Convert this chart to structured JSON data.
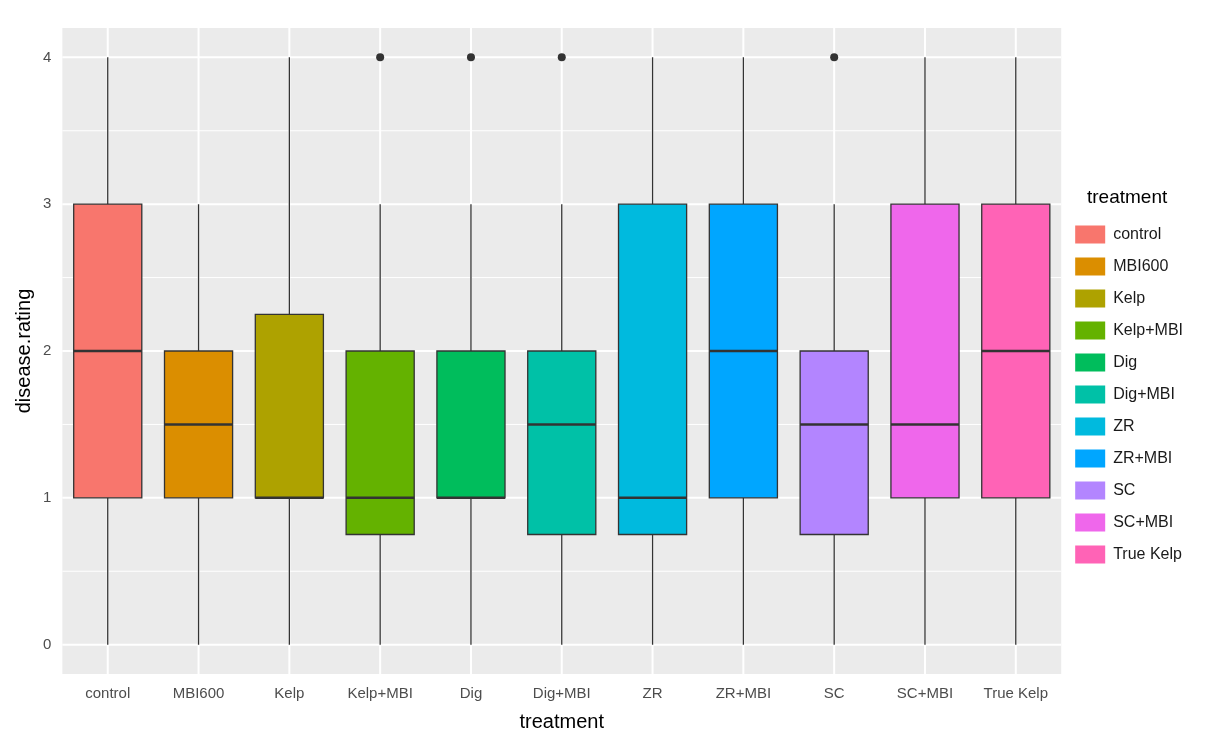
{
  "chart_data": {
    "type": "box",
    "xlabel": "treatment",
    "ylabel": "disease.rating",
    "legend_title": "treatment",
    "legend": "right",
    "grid": true,
    "categories": [
      "control",
      "MBI600",
      "Kelp",
      "Kelp+MBI",
      "Dig",
      "Dig+MBI",
      "ZR",
      "ZR+MBI",
      "SC",
      "SC+MBI",
      "True Kelp"
    ],
    "series": [
      {
        "name": "control",
        "color": "#f8766d",
        "boxes": [
          {
            "low": 0,
            "q1": 1,
            "median": 2,
            "q3": 3,
            "high": 4
          },
          null,
          null,
          null,
          null,
          null,
          null,
          null,
          null,
          null,
          null
        ]
      },
      {
        "name": "MBI600",
        "color": "#db8e00",
        "boxes": [
          null,
          {
            "low": 0,
            "q1": 1,
            "median": 1.5,
            "q3": 2,
            "high": 3
          },
          null,
          null,
          null,
          null,
          null,
          null,
          null,
          null,
          null
        ]
      },
      {
        "name": "Kelp",
        "color": "#aea200",
        "boxes": [
          null,
          null,
          {
            "low": 0,
            "q1": 1,
            "median": 1,
            "q3": 2.25,
            "high": 4
          },
          null,
          null,
          null,
          null,
          null,
          null,
          null,
          null
        ]
      },
      {
        "name": "Kelp+MBI",
        "color": "#64b200",
        "boxes": [
          null,
          null,
          null,
          {
            "low": 0,
            "q1": 0.75,
            "median": 1,
            "q3": 2,
            "high": 3,
            "outliers": [
              4
            ]
          },
          null,
          null,
          null,
          null,
          null,
          null,
          null
        ]
      },
      {
        "name": "Dig",
        "color": "#00bd5c",
        "boxes": [
          null,
          null,
          null,
          null,
          {
            "low": 0,
            "q1": 1,
            "median": 1,
            "q3": 2,
            "high": 3,
            "outliers": [
              4
            ]
          },
          null,
          null,
          null,
          null,
          null,
          null
        ]
      },
      {
        "name": "Dig+MBI",
        "color": "#00c1a7",
        "boxes": [
          null,
          null,
          null,
          null,
          null,
          {
            "low": 0,
            "q1": 0.75,
            "median": 1.5,
            "q3": 2,
            "high": 3,
            "outliers": [
              4
            ]
          },
          null,
          null,
          null,
          null,
          null
        ]
      },
      {
        "name": "ZR",
        "color": "#00bade",
        "boxes": [
          null,
          null,
          null,
          null,
          null,
          null,
          {
            "low": 0,
            "q1": 0.75,
            "median": 1,
            "q3": 3,
            "high": 4
          },
          null,
          null,
          null,
          null
        ]
      },
      {
        "name": "ZR+MBI",
        "color": "#00a6ff",
        "boxes": [
          null,
          null,
          null,
          null,
          null,
          null,
          null,
          {
            "low": 0,
            "q1": 1,
            "median": 2,
            "q3": 3,
            "high": 4
          },
          null,
          null,
          null
        ]
      },
      {
        "name": "SC",
        "color": "#b385ff",
        "boxes": [
          null,
          null,
          null,
          null,
          null,
          null,
          null,
          null,
          {
            "low": 0,
            "q1": 0.75,
            "median": 1.5,
            "q3": 2,
            "high": 3,
            "outliers": [
              4
            ]
          },
          null,
          null
        ]
      },
      {
        "name": "SC+MBI",
        "color": "#ef67eb",
        "boxes": [
          null,
          null,
          null,
          null,
          null,
          null,
          null,
          null,
          null,
          {
            "low": 0,
            "q1": 1,
            "median": 1.5,
            "q3": 3,
            "high": 4
          },
          null
        ]
      },
      {
        "name": "True Kelp",
        "color": "#ff63b6",
        "boxes": [
          null,
          null,
          null,
          null,
          null,
          null,
          null,
          null,
          null,
          null,
          {
            "low": 0,
            "q1": 1,
            "median": 2,
            "q3": 3,
            "high": 4
          }
        ]
      }
    ],
    "ylim": [
      -0.2,
      4.2
    ],
    "yticks": [
      0,
      1,
      2,
      3,
      4
    ]
  }
}
